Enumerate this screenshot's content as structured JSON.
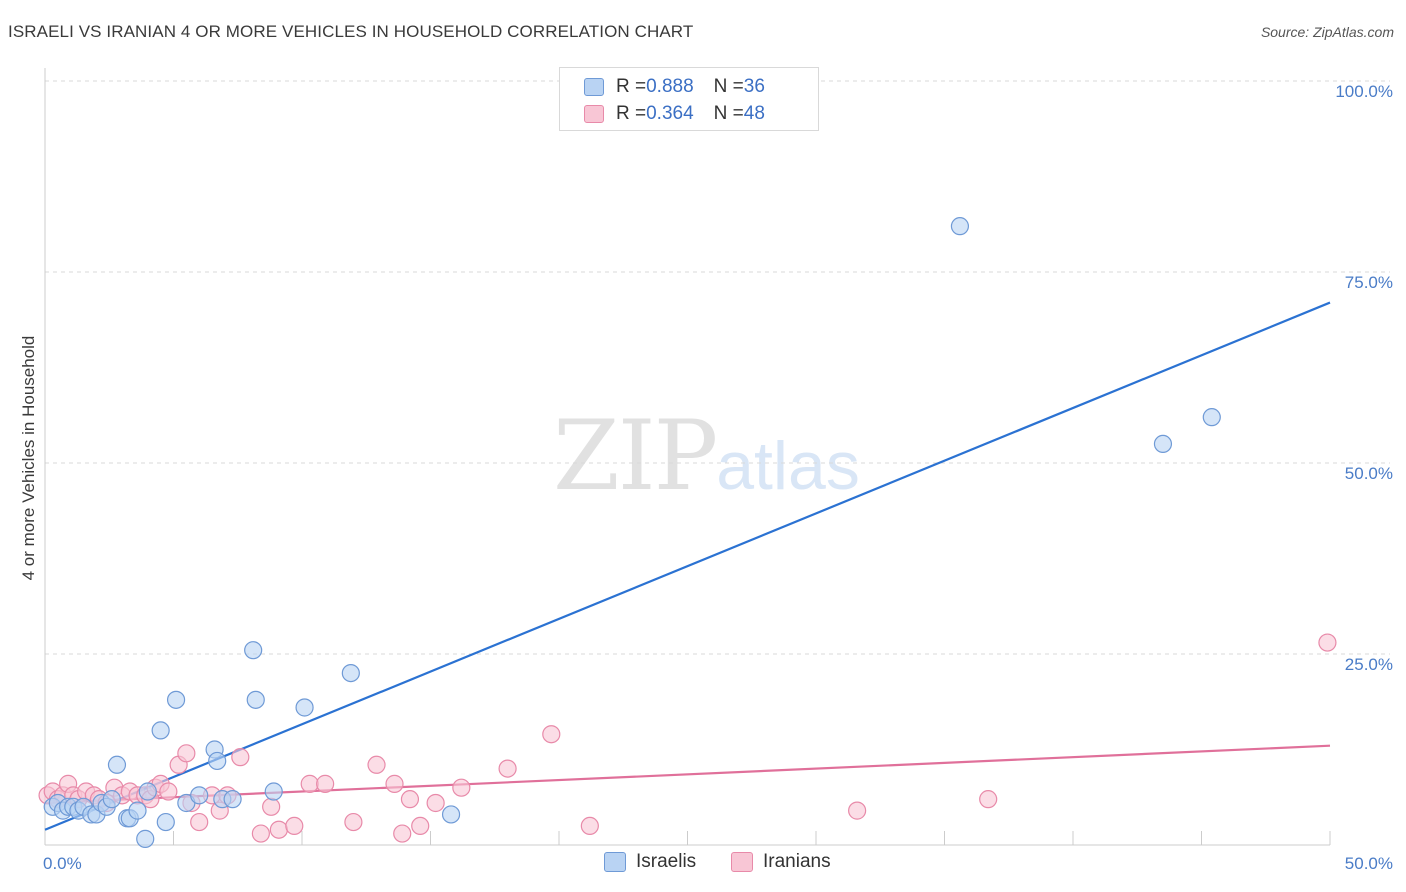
{
  "title": "ISRAELI VS IRANIAN 4 OR MORE VEHICLES IN HOUSEHOLD CORRELATION CHART",
  "source": "Source: ZipAtlas.com",
  "watermark": {
    "main": "ZIP",
    "sub": "atlas"
  },
  "legend": {
    "rows": [
      {
        "r_label": "R = ",
        "r_value": "0.888",
        "n_label": "N = ",
        "n_value": "36"
      },
      {
        "r_label": "R = ",
        "r_value": "0.364",
        "n_label": "N = ",
        "n_value": "48"
      }
    ]
  },
  "bottom_legend": [
    "Israelis",
    "Iranians"
  ],
  "colors": {
    "israelis_fill": "#b9d3f3",
    "israelis_stroke": "#6f9ad6",
    "israelis_line": "#2b72d2",
    "iranians_fill": "#f8c6d5",
    "iranians_stroke": "#e88aa9",
    "iranians_line": "#e0709a",
    "tick": "#4a7cc7",
    "grid": "#d9d9d9"
  },
  "chart_data": {
    "type": "scatter",
    "title": "ISRAELI VS IRANIAN 4 OR MORE VEHICLES IN HOUSEHOLD CORRELATION CHART",
    "xlabel": "",
    "ylabel": "4 or more Vehicles in Household",
    "xlim": [
      0,
      50
    ],
    "ylim": [
      0,
      100
    ],
    "x_tick_labels": [
      "0.0%",
      "50.0%"
    ],
    "y_ticks": [
      25,
      50,
      75,
      100
    ],
    "y_tick_labels": [
      "25.0%",
      "50.0%",
      "75.0%",
      "100.0%"
    ],
    "series": [
      {
        "name": "Israelis",
        "points": [
          [
            0.3,
            5.0
          ],
          [
            0.5,
            5.5
          ],
          [
            0.7,
            4.5
          ],
          [
            0.9,
            5.0
          ],
          [
            1.1,
            5.0
          ],
          [
            1.3,
            4.5
          ],
          [
            1.5,
            5.0
          ],
          [
            1.8,
            4.0
          ],
          [
            2.0,
            4.0
          ],
          [
            2.2,
            5.5
          ],
          [
            2.4,
            5.0
          ],
          [
            2.8,
            10.5
          ],
          [
            2.6,
            6.0
          ],
          [
            3.2,
            3.5
          ],
          [
            3.3,
            3.5
          ],
          [
            3.6,
            4.5
          ],
          [
            3.9,
            0.8
          ],
          [
            4.0,
            7.0
          ],
          [
            4.5,
            15.0
          ],
          [
            4.7,
            3.0
          ],
          [
            5.1,
            19.0
          ],
          [
            5.5,
            5.5
          ],
          [
            6.0,
            6.5
          ],
          [
            6.6,
            12.5
          ],
          [
            6.7,
            11.0
          ],
          [
            6.9,
            6.0
          ],
          [
            7.3,
            6.0
          ],
          [
            8.1,
            25.5
          ],
          [
            8.2,
            19.0
          ],
          [
            8.9,
            7.0
          ],
          [
            10.1,
            18.0
          ],
          [
            11.9,
            22.5
          ],
          [
            15.8,
            4.0
          ],
          [
            35.6,
            81.0
          ],
          [
            43.5,
            52.5
          ],
          [
            45.4,
            56.0
          ]
        ]
      },
      {
        "name": "Iranians",
        "points": [
          [
            0.1,
            6.5
          ],
          [
            0.3,
            7.0
          ],
          [
            0.5,
            6.0
          ],
          [
            0.7,
            6.5
          ],
          [
            0.9,
            8.0
          ],
          [
            1.1,
            6.5
          ],
          [
            1.3,
            6.0
          ],
          [
            1.6,
            7.0
          ],
          [
            1.9,
            6.5
          ],
          [
            2.1,
            6.0
          ],
          [
            2.4,
            5.5
          ],
          [
            2.7,
            7.5
          ],
          [
            3.0,
            6.5
          ],
          [
            3.3,
            7.0
          ],
          [
            3.6,
            6.5
          ],
          [
            3.9,
            6.5
          ],
          [
            4.1,
            6.0
          ],
          [
            4.3,
            7.5
          ],
          [
            4.5,
            8.0
          ],
          [
            4.8,
            7.0
          ],
          [
            5.2,
            10.5
          ],
          [
            5.5,
            12.0
          ],
          [
            5.7,
            5.5
          ],
          [
            6.0,
            3.0
          ],
          [
            6.5,
            6.5
          ],
          [
            6.8,
            4.5
          ],
          [
            7.1,
            6.5
          ],
          [
            7.6,
            11.5
          ],
          [
            8.4,
            1.5
          ],
          [
            8.8,
            5.0
          ],
          [
            9.1,
            2.0
          ],
          [
            9.7,
            2.5
          ],
          [
            10.3,
            8.0
          ],
          [
            10.9,
            8.0
          ],
          [
            12.0,
            3.0
          ],
          [
            12.9,
            10.5
          ],
          [
            13.6,
            8.0
          ],
          [
            13.9,
            1.5
          ],
          [
            14.2,
            6.0
          ],
          [
            14.6,
            2.5
          ],
          [
            15.2,
            5.5
          ],
          [
            16.2,
            7.5
          ],
          [
            18.0,
            10.0
          ],
          [
            19.7,
            14.5
          ],
          [
            21.2,
            2.5
          ],
          [
            31.6,
            4.5
          ],
          [
            36.7,
            6.0
          ],
          [
            49.9,
            26.5
          ]
        ]
      }
    ],
    "trendlines": [
      {
        "name": "Israelis",
        "from": [
          0,
          2.0
        ],
        "to": [
          50,
          71.0
        ]
      },
      {
        "name": "Iranians",
        "from": [
          0,
          5.5
        ],
        "to": [
          50,
          13.0
        ]
      }
    ]
  }
}
